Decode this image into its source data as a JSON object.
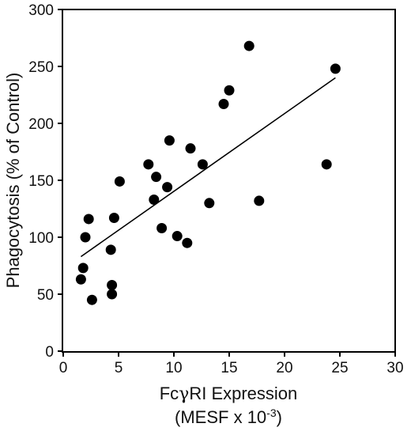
{
  "chart_data": {
    "type": "scatter",
    "title": "",
    "xlabel_line1_prefix": "Fc",
    "xlabel_line1_greek": "γ",
    "xlabel_line1_suffix": "RI Expression",
    "xlabel_line2_prefix": "(MESF x 10",
    "xlabel_line2_exp": "-3",
    "xlabel_line2_suffix": ")",
    "ylabel": "Phagocytosis (% of Control)",
    "xlim": [
      0,
      30
    ],
    "ylim": [
      0,
      300
    ],
    "xticks": [
      0,
      5,
      10,
      15,
      20,
      25,
      30
    ],
    "yticks": [
      0,
      50,
      100,
      150,
      200,
      250,
      300
    ],
    "grid": false,
    "points": [
      {
        "x": 1.6,
        "y": 63
      },
      {
        "x": 1.8,
        "y": 73
      },
      {
        "x": 2.0,
        "y": 100
      },
      {
        "x": 2.3,
        "y": 116
      },
      {
        "x": 2.6,
        "y": 45
      },
      {
        "x": 4.3,
        "y": 89
      },
      {
        "x": 4.4,
        "y": 58
      },
      {
        "x": 4.4,
        "y": 50
      },
      {
        "x": 4.6,
        "y": 117
      },
      {
        "x": 5.1,
        "y": 149
      },
      {
        "x": 7.7,
        "y": 164
      },
      {
        "x": 8.2,
        "y": 133
      },
      {
        "x": 8.4,
        "y": 153
      },
      {
        "x": 8.9,
        "y": 108
      },
      {
        "x": 9.4,
        "y": 144
      },
      {
        "x": 9.6,
        "y": 185
      },
      {
        "x": 10.3,
        "y": 101
      },
      {
        "x": 11.2,
        "y": 95
      },
      {
        "x": 11.5,
        "y": 178
      },
      {
        "x": 12.6,
        "y": 164
      },
      {
        "x": 13.2,
        "y": 130
      },
      {
        "x": 14.5,
        "y": 217
      },
      {
        "x": 15.0,
        "y": 229
      },
      {
        "x": 16.8,
        "y": 268
      },
      {
        "x": 17.7,
        "y": 132
      },
      {
        "x": 23.8,
        "y": 164
      },
      {
        "x": 24.6,
        "y": 248
      }
    ],
    "trendline": {
      "x": [
        1.6,
        24.6
      ],
      "y": [
        83,
        240
      ]
    }
  }
}
